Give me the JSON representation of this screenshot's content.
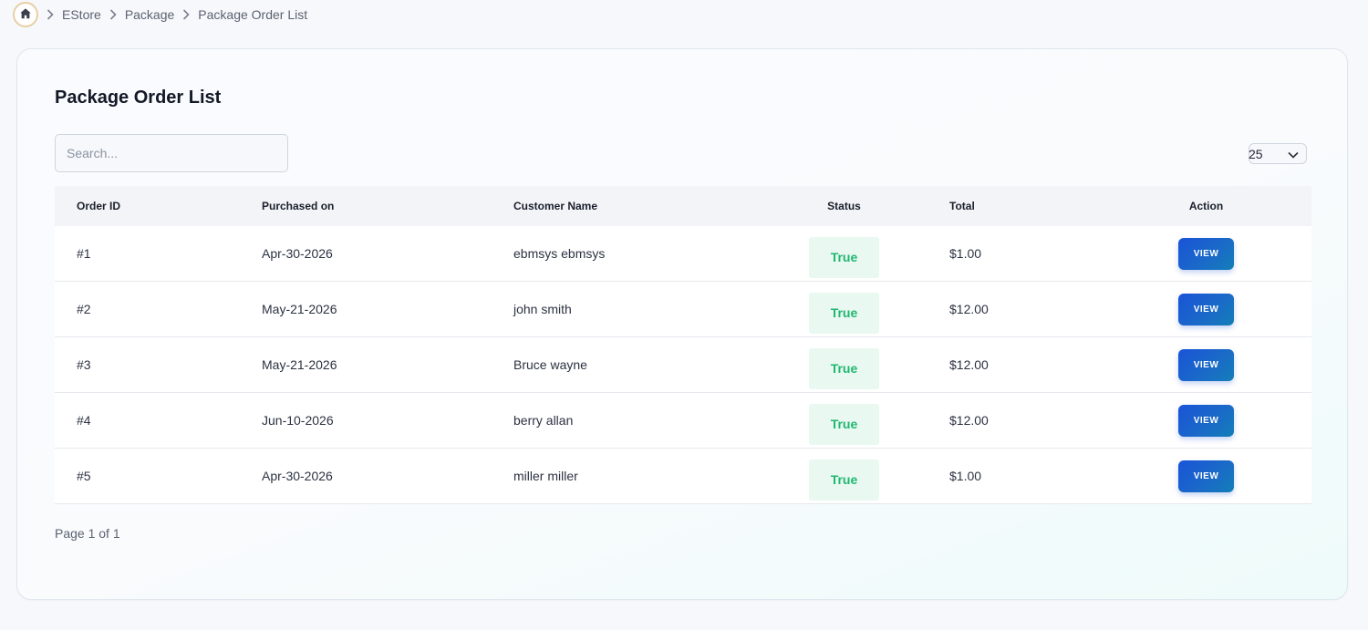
{
  "breadcrumb": {
    "home_icon": "home-icon",
    "items": [
      "EStore",
      "Package"
    ],
    "current": "Package Order List"
  },
  "page": {
    "title": "Package Order List"
  },
  "search": {
    "placeholder": "Search...",
    "value": ""
  },
  "per_page": {
    "selected": "25"
  },
  "table": {
    "columns": {
      "order_id": "Order ID",
      "purchased_on": "Purchased on",
      "customer_name": "Customer Name",
      "status": "Status",
      "total": "Total",
      "action": "Action"
    },
    "rows": [
      {
        "order_id": "#1",
        "purchased_on": "Apr-30-2026",
        "customer_name": "ebmsys ebmsys",
        "status": "True",
        "total": "$1.00",
        "action": "VIEW"
      },
      {
        "order_id": "#2",
        "purchased_on": "May-21-2026",
        "customer_name": "john smith",
        "status": "True",
        "total": "$12.00",
        "action": "VIEW"
      },
      {
        "order_id": "#3",
        "purchased_on": "May-21-2026",
        "customer_name": "Bruce wayne",
        "status": "True",
        "total": "$12.00",
        "action": "VIEW"
      },
      {
        "order_id": "#4",
        "purchased_on": "Jun-10-2026",
        "customer_name": "berry allan",
        "status": "True",
        "total": "$12.00",
        "action": "VIEW"
      },
      {
        "order_id": "#5",
        "purchased_on": "Apr-30-2026",
        "customer_name": "miller miller",
        "status": "True",
        "total": "$1.00",
        "action": "VIEW"
      }
    ]
  },
  "pagination": {
    "label": "Page 1 of 1"
  },
  "colors": {
    "accent": "#1a53d8",
    "status_true_text": "#1fb870",
    "status_true_bg": "#e9f8f1"
  }
}
